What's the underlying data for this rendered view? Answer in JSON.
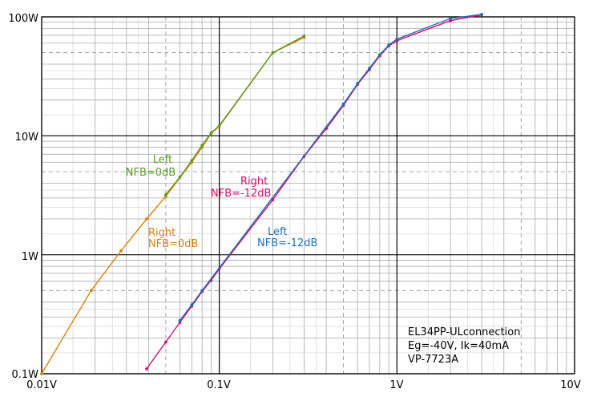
{
  "chart_data": {
    "type": "line",
    "title": "",
    "xlabel": "",
    "ylabel": "",
    "x_scale": "log",
    "y_scale": "log",
    "xlim": [
      0.01,
      10
    ],
    "ylim": [
      0.1,
      100
    ],
    "grid": true,
    "x_ticks": [
      {
        "value": 0.01,
        "label": "0.01V"
      },
      {
        "value": 0.1,
        "label": "0.1V"
      },
      {
        "value": 1,
        "label": "1V"
      },
      {
        "value": 10,
        "label": "10V"
      }
    ],
    "y_ticks": [
      {
        "value": 0.1,
        "label": "0.1W"
      },
      {
        "value": 1,
        "label": "1W"
      },
      {
        "value": 10,
        "label": "10W"
      },
      {
        "value": 100,
        "label": "100W"
      }
    ],
    "series": [
      {
        "color": "#d9820a",
        "points": [
          [
            0.01,
            0.1
          ],
          [
            0.019,
            0.5
          ],
          [
            0.028,
            1.08
          ],
          [
            0.039,
            2.0
          ],
          [
            0.05,
            3.1
          ],
          [
            0.07,
            6.0
          ],
          [
            0.08,
            8.0
          ],
          [
            0.09,
            10.5
          ],
          [
            0.1,
            12.0
          ],
          [
            0.2,
            50
          ],
          [
            0.3,
            67
          ]
        ]
      },
      {
        "color": "#5b9a2c",
        "points": [
          [
            0.05,
            3.2
          ],
          [
            0.06,
            4.5
          ],
          [
            0.07,
            6.2
          ],
          [
            0.08,
            8.3
          ],
          [
            0.09,
            10.6
          ],
          [
            0.1,
            12.2
          ],
          [
            0.2,
            50
          ],
          [
            0.3,
            69
          ]
        ]
      },
      {
        "color": "#d0106e",
        "points": [
          [
            0.039,
            0.11
          ],
          [
            0.05,
            0.185
          ],
          [
            0.06,
            0.27
          ],
          [
            0.07,
            0.37
          ],
          [
            0.08,
            0.49
          ],
          [
            0.09,
            0.61
          ],
          [
            0.1,
            0.76
          ],
          [
            0.2,
            2.9
          ],
          [
            0.3,
            6.7
          ],
          [
            0.4,
            11.5
          ],
          [
            0.5,
            18
          ],
          [
            0.6,
            27
          ],
          [
            0.7,
            36
          ],
          [
            0.8,
            47
          ],
          [
            0.9,
            57
          ],
          [
            1.0,
            63
          ],
          [
            2.0,
            93
          ],
          [
            3.0,
            104
          ]
        ]
      },
      {
        "color": "#1f6eb5",
        "points": [
          [
            0.06,
            0.28
          ],
          [
            0.07,
            0.38
          ],
          [
            0.08,
            0.5
          ],
          [
            0.5,
            18.5
          ],
          [
            0.6,
            27.5
          ],
          [
            0.7,
            37
          ],
          [
            0.8,
            48
          ],
          [
            0.9,
            58
          ],
          [
            1.0,
            65
          ],
          [
            2.0,
            97
          ],
          [
            3.0,
            105
          ]
        ]
      }
    ],
    "annotations": [
      {
        "lines": [
          "Left",
          "NFB=0dB"
        ],
        "color": "#5b9a2c"
      },
      {
        "lines": [
          "Right",
          "NFB=0dB"
        ],
        "color": "#d9820a"
      },
      {
        "lines": [
          "Right",
          "NFB=-12dB"
        ],
        "color": "#d0106e"
      },
      {
        "lines": [
          "Left",
          "NFB=-12dB"
        ],
        "color": "#1f6eb5"
      }
    ],
    "info_box": [
      "EL34PP-ULconnection",
      "Eg=-40V, Ik=40mA",
      "VP-7723A"
    ]
  }
}
